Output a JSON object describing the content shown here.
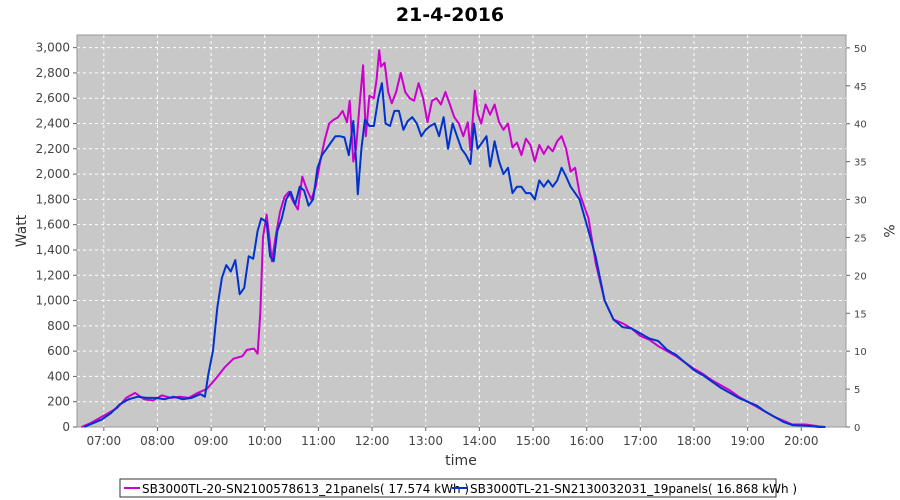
{
  "chart_data": {
    "type": "line",
    "title": "21-4-2016",
    "xlabel": "time",
    "ylabel": "Watt",
    "ylabel_right": "%",
    "x_ticks": [
      "07:00",
      "08:00",
      "09:00",
      "10:00",
      "11:00",
      "12:00",
      "13:00",
      "14:00",
      "15:00",
      "16:00",
      "17:00",
      "18:00",
      "19:00",
      "20:00"
    ],
    "xlim": [
      "06:30",
      "20:50"
    ],
    "ylim": [
      0,
      3100
    ],
    "y_ticks": [
      "0",
      "200",
      "400",
      "600",
      "800",
      "1,000",
      "1,200",
      "1,400",
      "1,600",
      "1,800",
      "2,000",
      "2,200",
      "2,400",
      "2,600",
      "2,800",
      "3,000"
    ],
    "ylim_right": [
      0,
      51.7
    ],
    "y_ticks_right": [
      "0",
      "5",
      "10",
      "15",
      "20",
      "25",
      "30",
      "35",
      "40",
      "45",
      "50"
    ],
    "grid": true,
    "background": "#c8c8c8",
    "legend_position": "bottom",
    "series": [
      {
        "name": "SB3000TL-20-SN2100578613_21panels( 17.574 kWh )",
        "color": "#cc00cc",
        "points": [
          [
            "06:35",
            0
          ],
          [
            "06:45",
            30
          ],
          [
            "06:55",
            70
          ],
          [
            "07:05",
            110
          ],
          [
            "07:15",
            150
          ],
          [
            "07:25",
            230
          ],
          [
            "07:35",
            270
          ],
          [
            "07:45",
            220
          ],
          [
            "07:55",
            210
          ],
          [
            "08:05",
            250
          ],
          [
            "08:15",
            230
          ],
          [
            "08:25",
            240
          ],
          [
            "08:35",
            230
          ],
          [
            "08:45",
            270
          ],
          [
            "08:55",
            300
          ],
          [
            "09:05",
            380
          ],
          [
            "09:15",
            470
          ],
          [
            "09:25",
            540
          ],
          [
            "09:35",
            560
          ],
          [
            "09:40",
            610
          ],
          [
            "09:48",
            620
          ],
          [
            "09:52",
            580
          ],
          [
            "09:55",
            900
          ],
          [
            "09:58",
            1500
          ],
          [
            "10:02",
            1680
          ],
          [
            "10:05",
            1500
          ],
          [
            "10:08",
            1310
          ],
          [
            "10:12",
            1500
          ],
          [
            "10:17",
            1700
          ],
          [
            "10:22",
            1820
          ],
          [
            "10:27",
            1860
          ],
          [
            "10:32",
            1780
          ],
          [
            "10:37",
            1720
          ],
          [
            "10:42",
            1980
          ],
          [
            "10:47",
            1880
          ],
          [
            "10:52",
            1800
          ],
          [
            "10:57",
            1900
          ],
          [
            "11:02",
            2100
          ],
          [
            "11:07",
            2270
          ],
          [
            "11:12",
            2400
          ],
          [
            "11:17",
            2430
          ],
          [
            "11:22",
            2450
          ],
          [
            "11:27",
            2500
          ],
          [
            "11:32",
            2410
          ],
          [
            "11:35",
            2580
          ],
          [
            "11:39",
            2100
          ],
          [
            "11:42",
            2200
          ],
          [
            "11:46",
            2550
          ],
          [
            "11:50",
            2860
          ],
          [
            "11:53",
            2300
          ],
          [
            "11:57",
            2620
          ],
          [
            "12:02",
            2600
          ],
          [
            "12:05",
            2750
          ],
          [
            "12:08",
            2980
          ],
          [
            "12:10",
            2850
          ],
          [
            "12:14",
            2880
          ],
          [
            "12:18",
            2650
          ],
          [
            "12:22",
            2560
          ],
          [
            "12:27",
            2650
          ],
          [
            "12:32",
            2800
          ],
          [
            "12:37",
            2650
          ],
          [
            "12:42",
            2600
          ],
          [
            "12:47",
            2580
          ],
          [
            "12:52",
            2720
          ],
          [
            "12:57",
            2600
          ],
          [
            "13:02",
            2410
          ],
          [
            "13:07",
            2580
          ],
          [
            "13:12",
            2600
          ],
          [
            "13:17",
            2550
          ],
          [
            "13:22",
            2650
          ],
          [
            "13:27",
            2550
          ],
          [
            "13:32",
            2450
          ],
          [
            "13:37",
            2400
          ],
          [
            "13:42",
            2300
          ],
          [
            "13:47",
            2410
          ],
          [
            "13:50",
            2190
          ],
          [
            "13:55",
            2660
          ],
          [
            "13:58",
            2480
          ],
          [
            "14:02",
            2400
          ],
          [
            "14:07",
            2550
          ],
          [
            "14:12",
            2470
          ],
          [
            "14:17",
            2550
          ],
          [
            "14:22",
            2410
          ],
          [
            "14:27",
            2350
          ],
          [
            "14:32",
            2400
          ],
          [
            "14:37",
            2210
          ],
          [
            "14:42",
            2250
          ],
          [
            "14:47",
            2150
          ],
          [
            "14:52",
            2280
          ],
          [
            "14:57",
            2230
          ],
          [
            "15:02",
            2100
          ],
          [
            "15:07",
            2230
          ],
          [
            "15:12",
            2160
          ],
          [
            "15:17",
            2220
          ],
          [
            "15:22",
            2180
          ],
          [
            "15:27",
            2260
          ],
          [
            "15:32",
            2300
          ],
          [
            "15:37",
            2200
          ],
          [
            "15:42",
            2020
          ],
          [
            "15:47",
            2050
          ],
          [
            "15:52",
            1850
          ],
          [
            "16:02",
            1650
          ],
          [
            "16:10",
            1300
          ],
          [
            "16:20",
            1000
          ],
          [
            "16:30",
            850
          ],
          [
            "16:40",
            820
          ],
          [
            "16:50",
            780
          ],
          [
            "17:00",
            720
          ],
          [
            "17:10",
            690
          ],
          [
            "17:20",
            640
          ],
          [
            "17:30",
            600
          ],
          [
            "17:40",
            560
          ],
          [
            "17:50",
            510
          ],
          [
            "18:00",
            460
          ],
          [
            "18:10",
            420
          ],
          [
            "18:20",
            370
          ],
          [
            "18:30",
            330
          ],
          [
            "18:40",
            290
          ],
          [
            "18:50",
            240
          ],
          [
            "19:00",
            200
          ],
          [
            "19:10",
            160
          ],
          [
            "19:20",
            120
          ],
          [
            "19:30",
            80
          ],
          [
            "19:40",
            50
          ],
          [
            "19:50",
            20
          ],
          [
            "20:05",
            20
          ],
          [
            "20:20",
            5
          ],
          [
            "20:27",
            0
          ]
        ]
      },
      {
        "name": "SB3000TL-21-SN2130032031_19panels( 16.868 kWh )",
        "color": "#0033cc",
        "points": [
          [
            "06:38",
            0
          ],
          [
            "06:48",
            30
          ],
          [
            "06:58",
            60
          ],
          [
            "07:08",
            110
          ],
          [
            "07:18",
            180
          ],
          [
            "07:28",
            220
          ],
          [
            "07:38",
            240
          ],
          [
            "07:48",
            230
          ],
          [
            "07:58",
            230
          ],
          [
            "08:08",
            220
          ],
          [
            "08:18",
            240
          ],
          [
            "08:28",
            220
          ],
          [
            "08:38",
            230
          ],
          [
            "08:48",
            260
          ],
          [
            "08:53",
            240
          ],
          [
            "08:57",
            420
          ],
          [
            "09:02",
            600
          ],
          [
            "09:07",
            950
          ],
          [
            "09:12",
            1180
          ],
          [
            "09:17",
            1280
          ],
          [
            "09:22",
            1230
          ],
          [
            "09:27",
            1320
          ],
          [
            "09:32",
            1050
          ],
          [
            "09:37",
            1100
          ],
          [
            "09:42",
            1350
          ],
          [
            "09:47",
            1330
          ],
          [
            "09:52",
            1550
          ],
          [
            "09:56",
            1650
          ],
          [
            "10:02",
            1620
          ],
          [
            "10:06",
            1350
          ],
          [
            "10:10",
            1310
          ],
          [
            "10:14",
            1550
          ],
          [
            "10:19",
            1650
          ],
          [
            "10:24",
            1800
          ],
          [
            "10:29",
            1860
          ],
          [
            "10:34",
            1760
          ],
          [
            "10:39",
            1900
          ],
          [
            "10:44",
            1870
          ],
          [
            "10:49",
            1750
          ],
          [
            "10:54",
            1800
          ],
          [
            "10:59",
            2050
          ],
          [
            "11:04",
            2150
          ],
          [
            "11:09",
            2200
          ],
          [
            "11:14",
            2250
          ],
          [
            "11:19",
            2300
          ],
          [
            "11:24",
            2300
          ],
          [
            "11:29",
            2290
          ],
          [
            "11:34",
            2150
          ],
          [
            "11:39",
            2420
          ],
          [
            "11:42",
            2120
          ],
          [
            "11:44",
            1840
          ],
          [
            "11:48",
            2200
          ],
          [
            "11:52",
            2430
          ],
          [
            "11:57",
            2380
          ],
          [
            "12:02",
            2380
          ],
          [
            "12:07",
            2600
          ],
          [
            "12:11",
            2720
          ],
          [
            "12:15",
            2400
          ],
          [
            "12:20",
            2380
          ],
          [
            "12:25",
            2500
          ],
          [
            "12:30",
            2500
          ],
          [
            "12:35",
            2350
          ],
          [
            "12:40",
            2420
          ],
          [
            "12:45",
            2450
          ],
          [
            "12:50",
            2400
          ],
          [
            "12:55",
            2300
          ],
          [
            "13:00",
            2350
          ],
          [
            "13:05",
            2380
          ],
          [
            "13:10",
            2400
          ],
          [
            "13:15",
            2300
          ],
          [
            "13:20",
            2450
          ],
          [
            "13:25",
            2200
          ],
          [
            "13:30",
            2400
          ],
          [
            "13:35",
            2300
          ],
          [
            "13:40",
            2200
          ],
          [
            "13:45",
            2150
          ],
          [
            "13:50",
            2080
          ],
          [
            "13:54",
            2400
          ],
          [
            "13:58",
            2200
          ],
          [
            "14:03",
            2250
          ],
          [
            "14:08",
            2300
          ],
          [
            "14:12",
            2060
          ],
          [
            "14:17",
            2260
          ],
          [
            "14:22",
            2100
          ],
          [
            "14:27",
            2000
          ],
          [
            "14:32",
            2050
          ],
          [
            "14:37",
            1850
          ],
          [
            "14:42",
            1900
          ],
          [
            "14:47",
            1900
          ],
          [
            "14:52",
            1850
          ],
          [
            "14:57",
            1850
          ],
          [
            "15:02",
            1800
          ],
          [
            "15:07",
            1950
          ],
          [
            "15:12",
            1900
          ],
          [
            "15:17",
            1950
          ],
          [
            "15:22",
            1900
          ],
          [
            "15:27",
            1950
          ],
          [
            "15:32",
            2050
          ],
          [
            "15:37",
            1980
          ],
          [
            "15:42",
            1900
          ],
          [
            "15:47",
            1850
          ],
          [
            "15:52",
            1800
          ],
          [
            "16:02",
            1550
          ],
          [
            "16:10",
            1350
          ],
          [
            "16:20",
            1000
          ],
          [
            "16:30",
            850
          ],
          [
            "16:40",
            790
          ],
          [
            "16:50",
            780
          ],
          [
            "17:00",
            740
          ],
          [
            "17:10",
            700
          ],
          [
            "17:20",
            680
          ],
          [
            "17:30",
            610
          ],
          [
            "17:40",
            570
          ],
          [
            "17:50",
            510
          ],
          [
            "18:00",
            450
          ],
          [
            "18:10",
            410
          ],
          [
            "18:20",
            360
          ],
          [
            "18:30",
            310
          ],
          [
            "18:40",
            270
          ],
          [
            "18:50",
            230
          ],
          [
            "19:00",
            200
          ],
          [
            "19:10",
            170
          ],
          [
            "19:20",
            120
          ],
          [
            "19:30",
            80
          ],
          [
            "19:40",
            40
          ],
          [
            "19:50",
            15
          ],
          [
            "20:05",
            10
          ],
          [
            "20:20",
            0
          ],
          [
            "20:27",
            0
          ]
        ]
      }
    ]
  }
}
